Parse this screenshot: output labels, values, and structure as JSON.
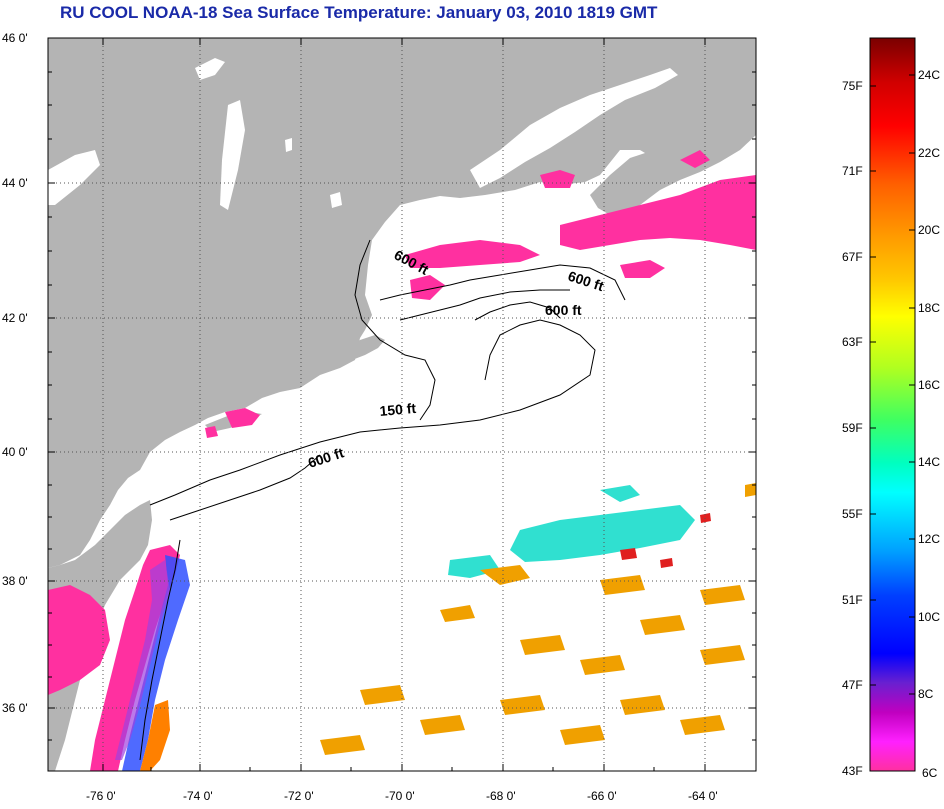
{
  "title": "RU COOL  NOAA-18  Sea Surface Temperature:  January 03, 2010 1819 GMT",
  "map": {
    "lat_labels": [
      "46 0'",
      "44 0'",
      "42 0'",
      "40 0'",
      "38 0'",
      "36 0'"
    ],
    "lon_labels": [
      "-76 0'",
      "-74 0'",
      "-72 0'",
      "-70 0'",
      "-68 0'",
      "-66 0'",
      "-64 0'"
    ],
    "contour_labels": [
      "600 ft",
      "600 ft",
      "600 ft",
      "150 ft",
      "600 ft"
    ],
    "colors": {
      "land": "#b4b4b4",
      "ocean": "#ffffff",
      "coast": "#000000",
      "contour": "#000000"
    }
  },
  "colorbar": {
    "fahrenheit": [
      "75F",
      "71F",
      "67F",
      "63F",
      "59F",
      "55F",
      "51F",
      "47F",
      "43F"
    ],
    "celsius": [
      "24C",
      "22C",
      "20C",
      "18C",
      "16C",
      "14C",
      "12C",
      "10C",
      "8C",
      "6C"
    ],
    "gradient": [
      "#7a0000",
      "#d00000",
      "#ff0000",
      "#ff6000",
      "#ff9a00",
      "#ffc800",
      "#ffff00",
      "#b0ff20",
      "#40ff60",
      "#00ffc0",
      "#00ffff",
      "#00a0ff",
      "#0040ff",
      "#0000ff",
      "#6a20d0",
      "#c000c0",
      "#ff20ff",
      "#ff30a0"
    ]
  }
}
